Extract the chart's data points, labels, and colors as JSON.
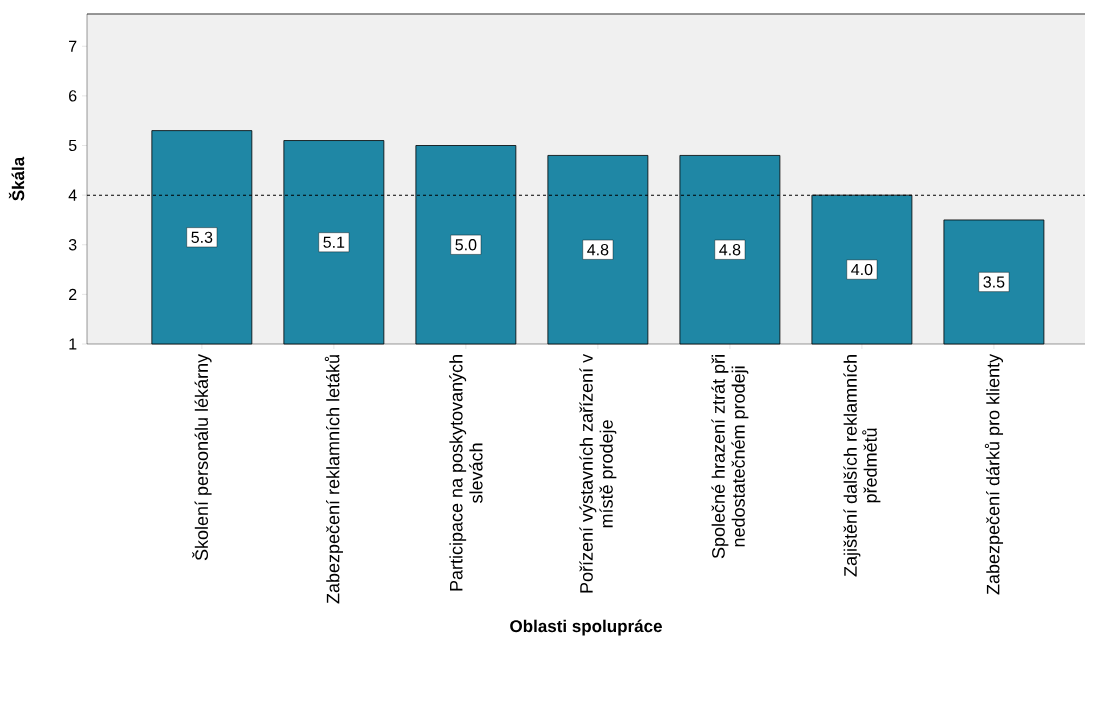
{
  "chart_data": {
    "type": "bar",
    "xlabel": "Oblasti spolupráce",
    "ylabel": "Škála",
    "categories": [
      "Školení personálu lékárny",
      "Zabezpečení reklamních letáků",
      "Participace na poskytovaných slevách",
      "Pořízení výstavních zařízení v místě prodeje",
      "Společné hrazení ztrát při nedostatečném prodeji",
      "Zajištění dalších reklamních předmětů",
      "Zabezpečení dárků pro klienty"
    ],
    "values": [
      5.3,
      5.1,
      5.0,
      4.8,
      4.8,
      4.0,
      3.5
    ],
    "value_labels": [
      "5.3",
      "5.1",
      "5.0",
      "4.8",
      "4.8",
      "4.0",
      "3.5"
    ],
    "color": "#1f87a5",
    "ylim": [
      1,
      7.65
    ],
    "yticks": [
      1,
      2,
      3,
      4,
      5,
      6,
      7
    ],
    "ref_lines": [
      {
        "axis": "y",
        "value": 4,
        "line_style": "dashed",
        "color": "#000000"
      }
    ],
    "grid": false
  }
}
